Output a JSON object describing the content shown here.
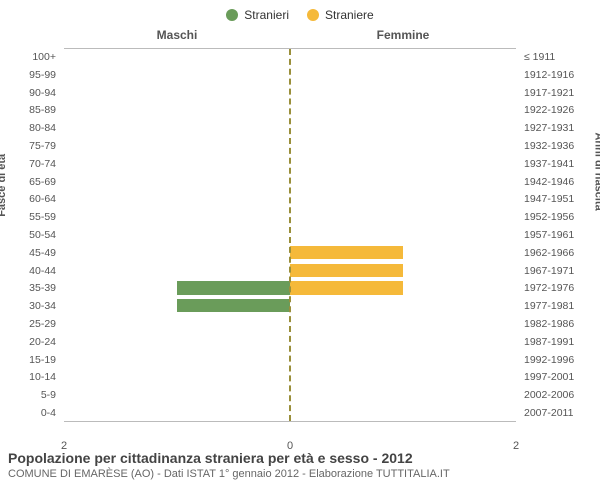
{
  "legend": [
    {
      "label": "Stranieri",
      "color": "#6a9c5a"
    },
    {
      "label": "Straniere",
      "color": "#f5b93a"
    }
  ],
  "columns": {
    "left": "Maschi",
    "right": "Femmine"
  },
  "y_left_title": "Fasce di età",
  "y_right_title": "Anni di nascita",
  "x_max": 2,
  "x_ticks_left": [
    "2",
    "0"
  ],
  "x_ticks_right": [
    "2"
  ],
  "bar_height_ratio": 0.74,
  "center_line_color": "#9a8f3a",
  "bands": [
    {
      "age": "100+",
      "birth": "≤ 1911",
      "m": 0,
      "f": 0
    },
    {
      "age": "95-99",
      "birth": "1912-1916",
      "m": 0,
      "f": 0
    },
    {
      "age": "90-94",
      "birth": "1917-1921",
      "m": 0,
      "f": 0
    },
    {
      "age": "85-89",
      "birth": "1922-1926",
      "m": 0,
      "f": 0
    },
    {
      "age": "80-84",
      "birth": "1927-1931",
      "m": 0,
      "f": 0
    },
    {
      "age": "75-79",
      "birth": "1932-1936",
      "m": 0,
      "f": 0
    },
    {
      "age": "70-74",
      "birth": "1937-1941",
      "m": 0,
      "f": 0
    },
    {
      "age": "65-69",
      "birth": "1942-1946",
      "m": 0,
      "f": 0
    },
    {
      "age": "60-64",
      "birth": "1947-1951",
      "m": 0,
      "f": 0
    },
    {
      "age": "55-59",
      "birth": "1952-1956",
      "m": 0,
      "f": 0
    },
    {
      "age": "50-54",
      "birth": "1957-1961",
      "m": 0,
      "f": 0
    },
    {
      "age": "45-49",
      "birth": "1962-1966",
      "m": 0,
      "f": 1
    },
    {
      "age": "40-44",
      "birth": "1967-1971",
      "m": 0,
      "f": 1
    },
    {
      "age": "35-39",
      "birth": "1972-1976",
      "m": 1,
      "f": 1
    },
    {
      "age": "30-34",
      "birth": "1977-1981",
      "m": 1,
      "f": 0
    },
    {
      "age": "25-29",
      "birth": "1982-1986",
      "m": 0,
      "f": 0
    },
    {
      "age": "20-24",
      "birth": "1987-1991",
      "m": 0,
      "f": 0
    },
    {
      "age": "15-19",
      "birth": "1992-1996",
      "m": 0,
      "f": 0
    },
    {
      "age": "10-14",
      "birth": "1997-2001",
      "m": 0,
      "f": 0
    },
    {
      "age": "5-9",
      "birth": "2002-2006",
      "m": 0,
      "f": 0
    },
    {
      "age": "0-4",
      "birth": "2007-2011",
      "m": 0,
      "f": 0
    }
  ],
  "colors": {
    "male": "#6a9c5a",
    "female": "#f5b93a"
  },
  "footer": {
    "title": "Popolazione per cittadinanza straniera per età e sesso - 2012",
    "subtitle": "COMUNE DI EMARÈSE (AO) - Dati ISTAT 1° gennaio 2012 - Elaborazione TUTTITALIA.IT"
  }
}
